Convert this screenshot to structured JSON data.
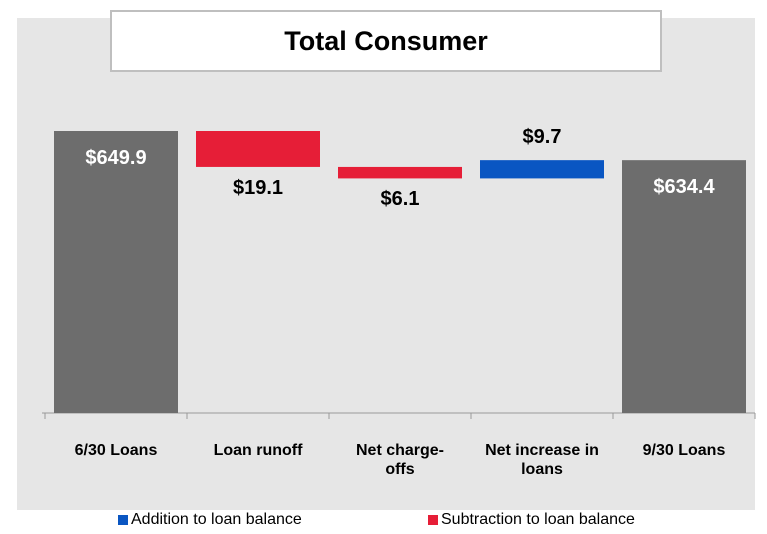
{
  "chart_data": {
    "type": "waterfall",
    "title": "Total Consumer",
    "categories": [
      "6/30 Loans",
      "Loan runoff",
      "Net charge-offs",
      "Net increase in loans",
      "9/30 Loans"
    ],
    "totals": {
      "color": "#6d6d6d",
      "values": [
        649.9,
        null,
        null,
        null,
        634.4
      ],
      "value_labels": [
        "$649.9",
        null,
        null,
        null,
        "$634.4"
      ]
    },
    "series": [
      {
        "name": "Addition to loan balance",
        "color": "#0a56c2",
        "values": [
          null,
          null,
          null,
          9.7,
          null
        ],
        "value_labels": [
          null,
          null,
          null,
          "$9.7",
          null
        ]
      },
      {
        "name": "Subtraction to loan balance",
        "color": "#e61e37",
        "values": [
          null,
          19.1,
          6.1,
          null,
          null
        ],
        "value_labels": [
          null,
          "$19.1",
          "$6.1",
          null,
          null
        ]
      }
    ],
    "ylim": [
      500,
      660
    ]
  }
}
